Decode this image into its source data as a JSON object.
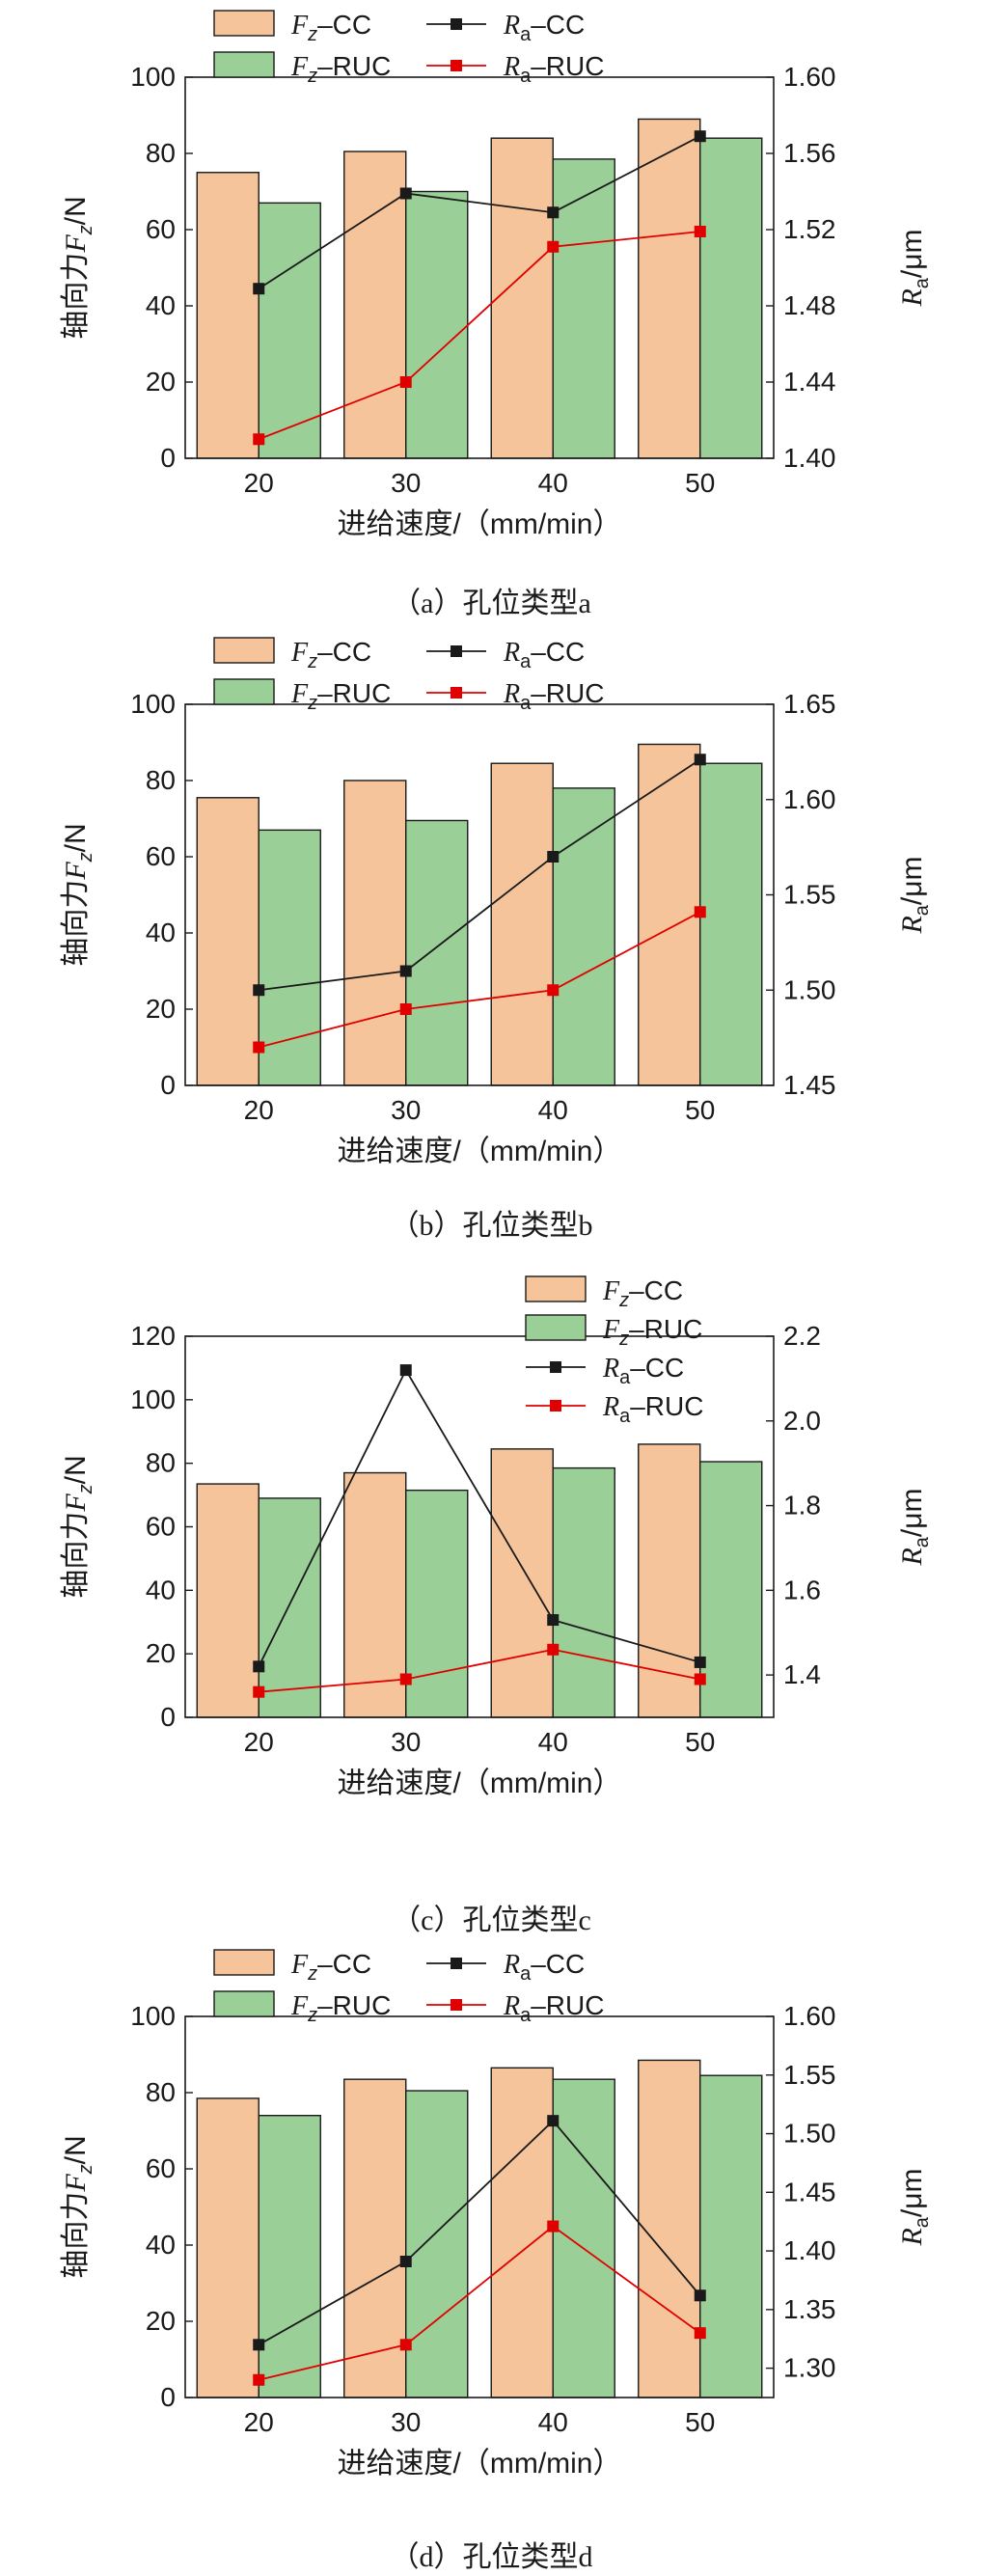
{
  "legend_labels": {
    "fz_cc": [
      "F",
      "z",
      "–CC"
    ],
    "fz_ruc": [
      "F",
      "z",
      "–RUC"
    ],
    "ra_cc": [
      "R",
      "a",
      "–CC"
    ],
    "ra_ruc": [
      "R",
      "a",
      "–RUC"
    ]
  },
  "colors": {
    "fz_cc_fill": "#f5c49a",
    "fz_ruc_fill": "#9bcf98",
    "bar_edge": "#1a1a1a",
    "ra_cc": "#1a1a1a",
    "ra_ruc": "#e00000"
  },
  "chart_data": [
    {
      "type": "bar",
      "caption": "（a）孔位类型a",
      "xlabel": "进给速度/（mm/min）",
      "ylabel": [
        "轴向力",
        "F",
        "z",
        "/N"
      ],
      "y2label": [
        "R",
        "a",
        "/μm"
      ],
      "categories": [
        "20",
        "30",
        "40",
        "50"
      ],
      "ylim": [
        0,
        100
      ],
      "yticks": [
        "0",
        "20",
        "40",
        "60",
        "80",
        "100"
      ],
      "y2lim": [
        1.4,
        1.6
      ],
      "y2ticks": [
        "1.40",
        "1.44",
        "1.48",
        "1.52",
        "1.56",
        "1.60"
      ],
      "legend_layout": "grid-top",
      "bars": [
        {
          "name": "F_z–CC",
          "values": [
            75,
            80.5,
            84,
            89
          ]
        },
        {
          "name": "F_z–RUC",
          "values": [
            67,
            70,
            78.5,
            84
          ]
        }
      ],
      "lines": [
        {
          "name": "R_a–CC",
          "values": [
            1.489,
            1.539,
            1.529,
            1.569
          ]
        },
        {
          "name": "R_a–RUC",
          "values": [
            1.41,
            1.44,
            1.511,
            1.519
          ]
        }
      ]
    },
    {
      "type": "bar",
      "caption": "（b）孔位类型b",
      "xlabel": "进给速度/（mm/min）",
      "ylabel": [
        "轴向力",
        "F",
        "z",
        "/N"
      ],
      "y2label": [
        "R",
        "a",
        "/μm"
      ],
      "categories": [
        "20",
        "30",
        "40",
        "50"
      ],
      "ylim": [
        0,
        100
      ],
      "yticks": [
        "0",
        "20",
        "40",
        "60",
        "80",
        "100"
      ],
      "y2lim": [
        1.45,
        1.65
      ],
      "y2ticks": [
        "1.45",
        "1.50",
        "1.55",
        "1.60",
        "1.65"
      ],
      "legend_layout": "grid-top",
      "bars": [
        {
          "name": "F_z–CC",
          "values": [
            75.5,
            80,
            84.5,
            89.5
          ]
        },
        {
          "name": "F_z–RUC",
          "values": [
            67,
            69.5,
            78,
            84.5
          ]
        }
      ],
      "lines": [
        {
          "name": "R_a–CC",
          "values": [
            1.5,
            1.51,
            1.57,
            1.621
          ]
        },
        {
          "name": "R_a–RUC",
          "values": [
            1.47,
            1.49,
            1.5,
            1.541
          ]
        }
      ]
    },
    {
      "type": "bar",
      "caption": "（c）孔位类型c",
      "xlabel": "进给速度/（mm/min）",
      "ylabel": [
        "轴向力",
        "F",
        "z",
        "/N"
      ],
      "y2label": [
        "R",
        "a",
        "/μm"
      ],
      "categories": [
        "20",
        "30",
        "40",
        "50"
      ],
      "ylim": [
        0,
        120
      ],
      "yticks": [
        "0",
        "20",
        "40",
        "60",
        "80",
        "100",
        "120"
      ],
      "y2lim": [
        1.3,
        2.2
      ],
      "y2ticks": [
        "1.4",
        "1.6",
        "1.8",
        "2.0",
        "2.2"
      ],
      "y2tick_values": [
        1.4,
        1.6,
        1.8,
        2.0,
        2.2
      ],
      "legend_layout": "column-right",
      "bars": [
        {
          "name": "F_z–CC",
          "values": [
            73.5,
            77,
            84.5,
            86
          ]
        },
        {
          "name": "F_z–RUC",
          "values": [
            69,
            71.5,
            78.5,
            80.5
          ]
        }
      ],
      "lines": [
        {
          "name": "R_a–CC",
          "values": [
            1.42,
            2.12,
            1.53,
            1.43
          ]
        },
        {
          "name": "R_a–RUC",
          "values": [
            1.36,
            1.39,
            1.46,
            1.39
          ]
        }
      ]
    },
    {
      "type": "bar",
      "caption": "（d）孔位类型d",
      "xlabel": "进给速度/（mm/min）",
      "ylabel": [
        "轴向力",
        "F",
        "z",
        "/N"
      ],
      "y2label": [
        "R",
        "a",
        "/μm"
      ],
      "categories": [
        "20",
        "30",
        "40",
        "50"
      ],
      "ylim": [
        0,
        100
      ],
      "yticks": [
        "0",
        "20",
        "40",
        "60",
        "80",
        "100"
      ],
      "y2lim": [
        1.275,
        1.6
      ],
      "y2ticks": [
        "1.30",
        "1.35",
        "1.40",
        "1.45",
        "1.50",
        "1.55",
        "1.60"
      ],
      "y2tick_values": [
        1.3,
        1.35,
        1.4,
        1.45,
        1.5,
        1.55,
        1.6
      ],
      "legend_layout": "grid-top",
      "bars": [
        {
          "name": "F_z–CC",
          "values": [
            78.5,
            83.5,
            86.5,
            88.5
          ]
        },
        {
          "name": "F_z–RUC",
          "values": [
            74,
            80.5,
            83.5,
            84.5
          ]
        }
      ],
      "lines": [
        {
          "name": "R_a–CC",
          "values": [
            1.32,
            1.391,
            1.511,
            1.362
          ]
        },
        {
          "name": "R_a–RUC",
          "values": [
            1.29,
            1.32,
            1.421,
            1.33
          ]
        }
      ]
    }
  ]
}
